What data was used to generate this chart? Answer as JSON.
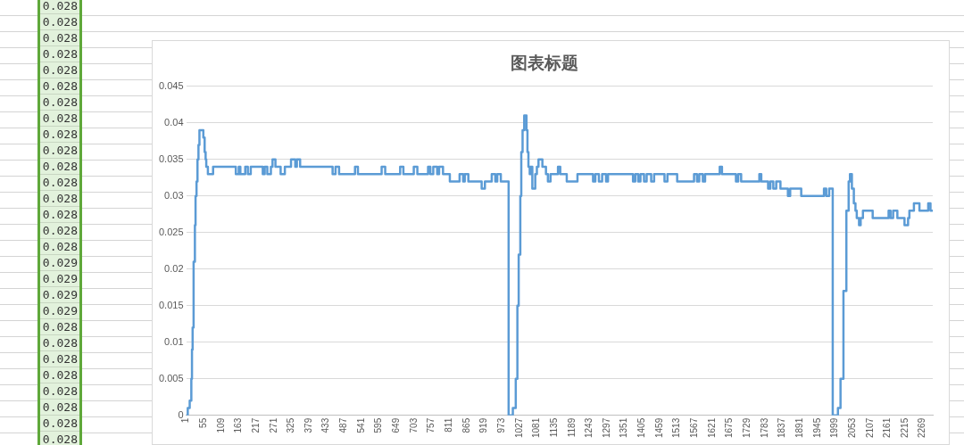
{
  "chart_data": [
    {
      "type": "step",
      "title": "图表标题",
      "xlim": [
        1,
        2300
      ],
      "ylim": [
        0,
        0.045
      ],
      "xticks": [
        1,
        55,
        109,
        163,
        217,
        271,
        325,
        379,
        433,
        487,
        541,
        595,
        649,
        703,
        757,
        811,
        865,
        919,
        973,
        1027,
        1081,
        1135,
        1189,
        1243,
        1297,
        1351,
        1405,
        1459,
        1513,
        1567,
        1621,
        1675,
        1729,
        1783,
        1837,
        1891,
        1945,
        1999,
        2053,
        2107,
        2161,
        2215,
        2269
      ],
      "yticks": [
        0,
        0.005,
        0.01,
        0.015,
        0.02,
        0.025,
        0.03,
        0.035,
        0.04,
        0.045
      ],
      "grid": "y",
      "legend": false,
      "marker": "none",
      "series": [
        {
          "color": "#5b9bd5",
          "x": [
            1,
            6,
            12,
            17,
            19,
            21,
            24,
            28,
            30,
            33,
            36,
            39,
            42,
            54,
            58,
            61,
            63,
            68,
            84,
            154,
            163,
            168,
            183,
            191,
            200,
            237,
            243,
            251,
            262,
            267,
            276,
            292,
            305,
            324,
            337,
            342,
            352,
            452,
            461,
            472,
            521,
            530,
            603,
            614,
            660,
            670,
            702,
            713,
            746,
            753,
            762,
            774,
            780,
            792,
            813,
            843,
            854,
            859,
            870,
            911,
            921,
            942,
            953,
            959,
            970,
            994,
            1007,
            1016,
            1021,
            1025,
            1030,
            1033,
            1037,
            1042,
            1049,
            1052,
            1055,
            1059,
            1062,
            1067,
            1076,
            1081,
            1086,
            1098,
            1109,
            1115,
            1123,
            1146,
            1153,
            1173,
            1206,
            1254,
            1261,
            1272,
            1282,
            1294,
            1300,
            1377,
            1384,
            1393,
            1400,
            1411,
            1419,
            1433,
            1442,
            1474,
            1483,
            1513,
            1565,
            1574,
            1581,
            1592,
            1599,
            1644,
            1651,
            1694,
            1701,
            1710,
            1766,
            1772,
            1793,
            1800,
            1809,
            1818,
            1831,
            1854,
            1861,
            1895,
            1965,
            1972,
            1981,
            1992,
            2008,
            2016,
            2025,
            2034,
            2041,
            2045,
            2051,
            2057,
            2062,
            2066,
            2073,
            2078,
            2085,
            2115,
            2164,
            2170,
            2178,
            2191,
            2213,
            2224,
            2228,
            2242,
            2259,
            2286,
            2293,
            2300
          ],
          "values": [
            0,
            0.001,
            0.002,
            0.005,
            0.009,
            0.012,
            0.021,
            0.026,
            0.03,
            0.032,
            0.035,
            0.037,
            0.039,
            0.038,
            0.036,
            0.035,
            0.034,
            0.033,
            0.034,
            0.033,
            0.034,
            0.033,
            0.034,
            0.033,
            0.034,
            0.033,
            0.034,
            0.033,
            0.034,
            0.035,
            0.034,
            0.033,
            0.034,
            0.035,
            0.034,
            0.035,
            0.034,
            0.033,
            0.034,
            0.033,
            0.034,
            0.033,
            0.034,
            0.033,
            0.034,
            0.033,
            0.034,
            0.033,
            0.034,
            0.033,
            0.034,
            0.033,
            0.034,
            0.033,
            0.032,
            0.033,
            0.032,
            0.033,
            0.032,
            0.031,
            0.032,
            0.033,
            0.032,
            0.033,
            0.032,
            0,
            0.001,
            0.005,
            0.015,
            0.022,
            0.03,
            0.036,
            0.039,
            0.041,
            0.039,
            0.036,
            0.034,
            0.033,
            0.034,
            0.031,
            0.033,
            0.034,
            0.035,
            0.034,
            0.033,
            0.032,
            0.033,
            0.034,
            0.033,
            0.032,
            0.033,
            0.032,
            0.033,
            0.032,
            0.033,
            0.032,
            0.033,
            0.032,
            0.033,
            0.032,
            0.033,
            0.032,
            0.033,
            0.032,
            0.033,
            0.032,
            0.033,
            0.032,
            0.033,
            0.032,
            0.033,
            0.032,
            0.033,
            0.034,
            0.033,
            0.032,
            0.033,
            0.032,
            0.033,
            0.032,
            0.031,
            0.032,
            0.031,
            0.032,
            0.031,
            0.03,
            0.031,
            0.03,
            0.031,
            0.03,
            0.031,
            0,
            0.001,
            0.005,
            0.017,
            0.028,
            0.032,
            0.033,
            0.031,
            0.029,
            0.028,
            0.027,
            0.026,
            0.027,
            0.028,
            0.027,
            0.028,
            0.027,
            0.028,
            0.027,
            0.026,
            0.027,
            0.028,
            0.029,
            0.028,
            0.029,
            0.028,
            0.028
          ]
        }
      ]
    },
    {
      "type": "other",
      "annotations": [
        "0.028",
        "0.028",
        "0.028",
        "0.028",
        "0.028",
        "0.028",
        "0.028",
        "0.028",
        "0.028",
        "0.028",
        "0.028",
        "0.028",
        "0.028",
        "0.028",
        "0.028",
        "0.028",
        "0.029",
        "0.029",
        "0.029",
        "0.029",
        "0.028",
        "0.028",
        "0.028",
        "0.028",
        "0.028",
        "0.028",
        "0.028",
        "0.028"
      ]
    }
  ]
}
